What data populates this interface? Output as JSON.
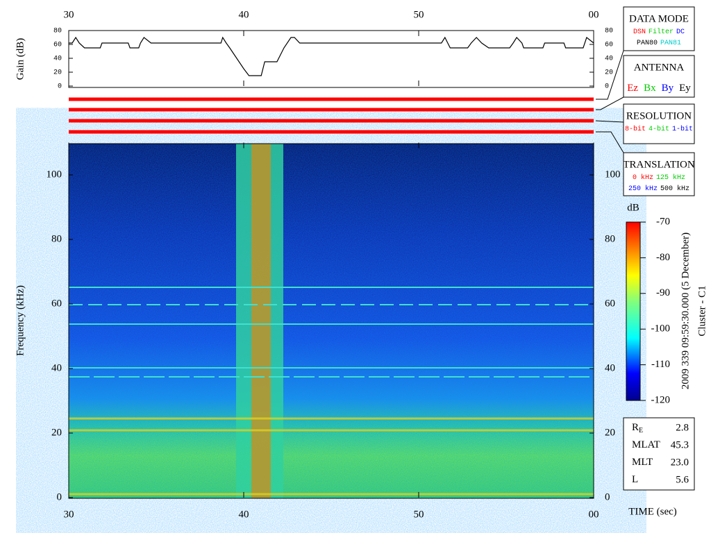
{
  "chart_data": [
    {
      "type": "line",
      "ylabel": "Gain (dB)",
      "x": [
        30,
        30.2,
        30.4,
        30.6,
        30.9,
        31.8,
        31.9,
        33.4,
        33.5,
        34.0,
        34.1,
        34.3,
        34.7,
        38.7,
        38.8,
        39.0,
        39.2,
        39.6,
        40.0,
        40.3,
        41.0,
        41.2,
        41.9,
        42.3,
        42.7,
        42.9,
        43.2,
        51.3,
        51.5,
        51.8,
        52.8,
        53.0,
        53.3,
        53.6,
        54.0,
        55.2,
        55.4,
        55.6,
        55.9,
        56.0,
        57.1,
        57.2,
        58.3,
        58.4,
        59.4,
        59.6,
        60
      ],
      "series": [
        {
          "color": "#000000",
          "values": [
            62,
            62,
            70,
            62,
            55,
            55,
            62,
            62,
            55,
            55,
            62,
            70,
            62,
            62,
            70,
            62,
            55,
            40,
            25,
            15,
            15,
            35,
            35,
            55,
            70,
            70,
            62,
            62,
            70,
            55,
            55,
            62,
            70,
            62,
            55,
            55,
            62,
            70,
            62,
            55,
            55,
            62,
            62,
            55,
            55,
            70,
            62
          ]
        }
      ],
      "xlim": [
        30,
        60
      ],
      "xticks": [
        30,
        40,
        50,
        {
          "value": 60,
          "label": "00"
        }
      ],
      "ylim": [
        0,
        80
      ],
      "yticks": [
        0,
        20,
        40,
        60,
        80
      ]
    },
    {
      "type": "heatmap",
      "ylabel": "Frequency (kHz)",
      "xlabel": "TIME (sec)",
      "xlim": [
        30,
        60
      ],
      "xticks": [
        30,
        40,
        50,
        {
          "value": 60,
          "label": "00"
        }
      ],
      "ylim": [
        0,
        110
      ],
      "yticks": [
        0,
        20,
        40,
        60,
        80,
        100
      ],
      "colorbar_label": "dB",
      "clim": [
        -120,
        -70
      ],
      "cticks": [
        -70,
        -80,
        -90,
        -100,
        -110,
        -120
      ],
      "date_label": "2009 339 09:59:30.000 (5 December)",
      "spacecraft": "Cluster - C1"
    }
  ],
  "panels": [
    {
      "title": "DATA MODE",
      "rows": [
        [
          {
            "text": "DSN",
            "color": "#ff0000"
          },
          {
            "text": "Filter",
            "color": "#00cc00"
          },
          {
            "text": "DC",
            "color": "#0000ff"
          }
        ],
        [
          {
            "text": "PAN80",
            "color": "#000000"
          },
          {
            "text": "PAN81",
            "color": "#00cccc"
          }
        ]
      ]
    },
    {
      "title": "ANTENNA",
      "rows": [
        [
          {
            "text": "Ez",
            "color": "#ff0000"
          },
          {
            "text": "Bx",
            "color": "#00cc00"
          },
          {
            "text": "By",
            "color": "#0000ff"
          },
          {
            "text": "Ey",
            "color": "#000000"
          }
        ]
      ]
    },
    {
      "title": "RESOLUTION",
      "rows": [
        [
          {
            "text": "8-bit",
            "color": "#ff0000"
          },
          {
            "text": "4-bit",
            "color": "#00cc00"
          },
          {
            "text": "1-bit",
            "color": "#0000ff"
          }
        ]
      ]
    },
    {
      "title": "TRANSLATION",
      "rows": [
        [
          {
            "text": "0 kHz",
            "color": "#ff0000"
          },
          {
            "text": "125 kHz",
            "color": "#00cc00"
          }
        ],
        [
          {
            "text": "250 kHz",
            "color": "#0000ff"
          },
          {
            "text": "500 kHz",
            "color": "#000000"
          }
        ]
      ]
    }
  ],
  "orbit": [
    {
      "label": "R",
      "sub": "E",
      "value": "2.8"
    },
    {
      "label": "MLAT",
      "value": "45.3"
    },
    {
      "label": "MLT",
      "value": "23.0"
    },
    {
      "label": "L",
      "value": "5.6"
    }
  ]
}
